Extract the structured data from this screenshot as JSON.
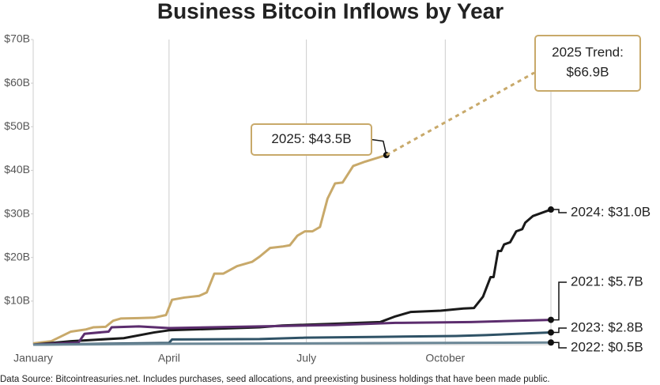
{
  "chart_data": {
    "type": "line",
    "title": "Business Bitcoin Inflows by Year",
    "xlim": [
      0,
      343
    ],
    "xticks": [
      {
        "value": 0,
        "label": "January"
      },
      {
        "value": 90,
        "label": "April"
      },
      {
        "value": 181,
        "label": "July"
      },
      {
        "value": 273,
        "label": "October"
      }
    ],
    "ylim": [
      0,
      70
    ],
    "yticks": [
      {
        "value": 10,
        "label": "$10B"
      },
      {
        "value": 20,
        "label": "$20B"
      },
      {
        "value": 30,
        "label": "$30B"
      },
      {
        "value": 40,
        "label": "$40B"
      },
      {
        "value": 50,
        "label": "$50B"
      },
      {
        "value": 60,
        "label": "$60B"
      },
      {
        "value": 70,
        "label": "$70B"
      }
    ],
    "grid": "x",
    "series": [
      {
        "label": "2025: $43.5B",
        "color": "#c8a96a",
        "dashed": false,
        "end_dot": true,
        "x": [
          0,
          12,
          25,
          35,
          40,
          48,
          53,
          58,
          70,
          80,
          88,
          92,
          100,
          110,
          115,
          120,
          126,
          135,
          145,
          150,
          157,
          165,
          170,
          175,
          180,
          185,
          190,
          195,
          200,
          205,
          212,
          220,
          234
        ],
        "values": [
          0.3,
          0.8,
          3,
          3.5,
          4,
          4.1,
          5.5,
          6,
          6.1,
          6.2,
          6.8,
          10.3,
          10.8,
          11.2,
          12,
          16.3,
          16.3,
          18,
          19,
          20.2,
          22.2,
          22.5,
          22.8,
          25,
          26,
          26,
          27,
          33.5,
          37,
          37.2,
          41,
          42,
          43.5
        ]
      },
      {
        "label": [
          "2025 Trend:",
          "$66.9B"
        ],
        "color": "#c8a96a",
        "dashed": true,
        "end_dot": false,
        "x": [
          234,
          332
        ],
        "values": [
          43.5,
          62.4
        ]
      },
      {
        "label": "2024: $31.0B",
        "color": "#1a1a1a",
        "dashed": false,
        "end_dot": true,
        "x": [
          0,
          25,
          60,
          80,
          90,
          150,
          165,
          200,
          230,
          240,
          250,
          270,
          285,
          292,
          298,
          303,
          305,
          308,
          310,
          312,
          316,
          320,
          324,
          326,
          331,
          343
        ],
        "values": [
          0,
          0.8,
          1.5,
          2.8,
          3.3,
          4,
          4.4,
          4.8,
          5.2,
          6.5,
          7.5,
          7.8,
          8.3,
          8.4,
          11,
          15.5,
          15.5,
          21.5,
          21.5,
          23,
          23.5,
          26,
          26.5,
          28,
          29.5,
          31.0
        ]
      },
      {
        "label": "2021: $5.7B",
        "color": "#5c2d6e",
        "dashed": false,
        "end_dot": true,
        "x": [
          0,
          30,
          34,
          50,
          52,
          70,
          90,
          150,
          200,
          240,
          290,
          343
        ],
        "values": [
          0,
          0.5,
          2.5,
          3,
          4,
          4.2,
          3.8,
          4.2,
          4.5,
          5,
          5.2,
          5.7
        ]
      },
      {
        "label": "2023: $2.8B",
        "color": "#2f5266",
        "dashed": false,
        "end_dot": true,
        "x": [
          0,
          90,
          92,
          150,
          180,
          230,
          280,
          300,
          343
        ],
        "values": [
          0,
          0.4,
          1.2,
          1.3,
          1.6,
          1.8,
          2,
          2.2,
          2.8
        ]
      },
      {
        "label": "2022: $0.5B",
        "color": "#6b8796",
        "dashed": false,
        "end_dot": true,
        "x": [
          0,
          90,
          343
        ],
        "values": [
          0,
          0.2,
          0.5
        ]
      }
    ],
    "footnote": "Data Source: Bitcointreasuries.net. Includes purchases, seed allocations, and preexisting business holdings that have been made public."
  }
}
